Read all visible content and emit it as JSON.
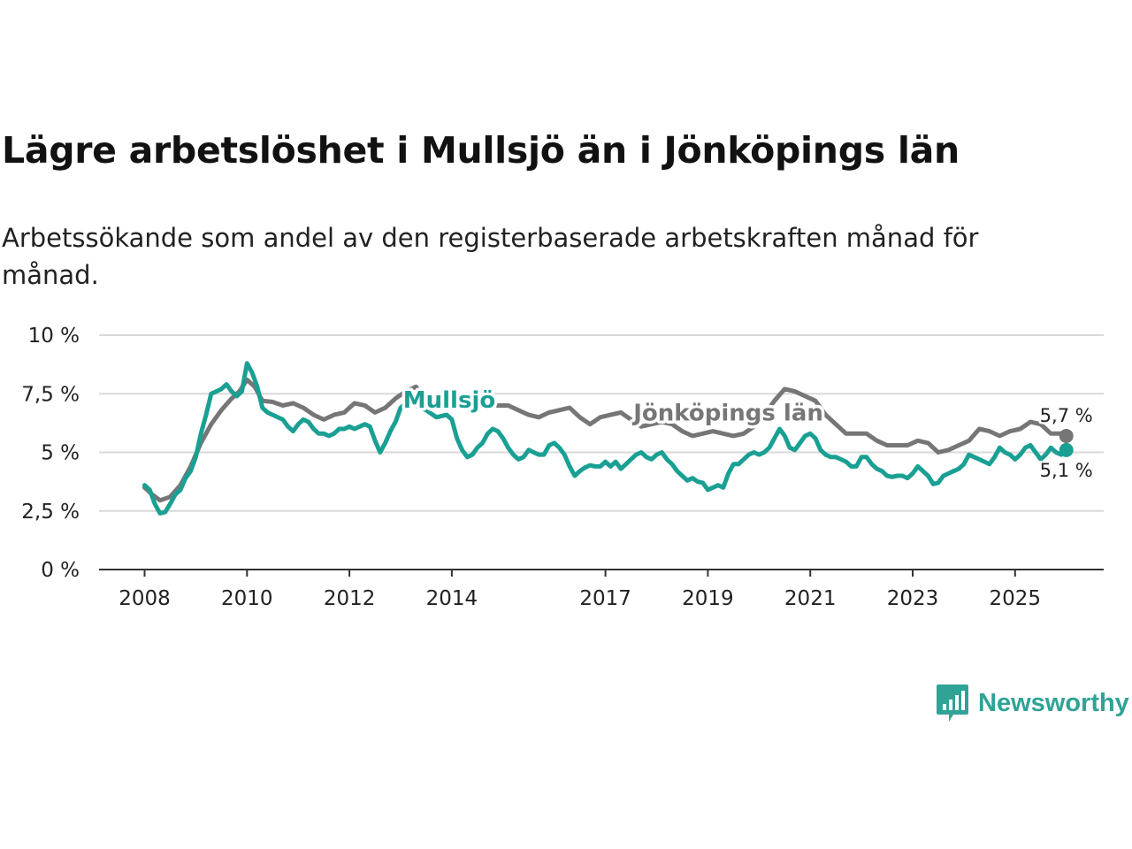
{
  "title": "Lägre arbetslöshet i Mullsjö än i Jönköpings län",
  "subtitle": "Arbetssökande som andel av den registerbaserade arbetskraften månad för månad.",
  "logo": {
    "text": "Newsworthy",
    "icon": "newsworthy-logo-icon",
    "color": "#2fa396"
  },
  "chart_data": {
    "type": "line",
    "y_unit": "%",
    "ylim": [
      0,
      10
    ],
    "xlim": [
      2007.75,
      2026.9
    ],
    "y_ticks": [
      {
        "value": 0,
        "label": "0 %"
      },
      {
        "value": 2.5,
        "label": "2,5 %"
      },
      {
        "value": 5,
        "label": "5 %"
      },
      {
        "value": 7.5,
        "label": "7,5 %"
      },
      {
        "value": 10,
        "label": "10 %"
      }
    ],
    "x_ticks": [
      {
        "value": 2008,
        "label": "2008"
      },
      {
        "value": 2010,
        "label": "2010"
      },
      {
        "value": 2012,
        "label": "2012"
      },
      {
        "value": 2014,
        "label": "2014"
      },
      {
        "value": 2017,
        "label": "2017"
      },
      {
        "value": 2019,
        "label": "2019"
      },
      {
        "value": 2021,
        "label": "2021"
      },
      {
        "value": 2023,
        "label": "2023"
      },
      {
        "value": 2025,
        "label": "2025"
      }
    ],
    "series": [
      {
        "name": "Jönköpings län",
        "color": "#767676",
        "end_label": "5,7 %",
        "points": [
          [
            2008.0,
            3.5
          ],
          [
            2008.15,
            3.2
          ],
          [
            2008.3,
            2.95
          ],
          [
            2008.5,
            3.1
          ],
          [
            2008.7,
            3.6
          ],
          [
            2008.9,
            4.4
          ],
          [
            2009.1,
            5.4
          ],
          [
            2009.3,
            6.2
          ],
          [
            2009.5,
            6.8
          ],
          [
            2009.7,
            7.3
          ],
          [
            2009.85,
            7.6
          ],
          [
            2010.0,
            8.1
          ],
          [
            2010.15,
            7.8
          ],
          [
            2010.3,
            7.2
          ],
          [
            2010.5,
            7.15
          ],
          [
            2010.7,
            7.0
          ],
          [
            2010.9,
            7.1
          ],
          [
            2011.1,
            6.9
          ],
          [
            2011.3,
            6.6
          ],
          [
            2011.5,
            6.4
          ],
          [
            2011.7,
            6.6
          ],
          [
            2011.9,
            6.7
          ],
          [
            2012.1,
            7.1
          ],
          [
            2012.3,
            7.0
          ],
          [
            2012.5,
            6.7
          ],
          [
            2012.7,
            6.9
          ],
          [
            2012.9,
            7.3
          ],
          [
            2013.1,
            7.6
          ],
          [
            2013.3,
            7.8
          ],
          [
            2013.5,
            7.2
          ],
          [
            2013.7,
            7.0
          ],
          [
            2013.9,
            7.3
          ],
          [
            2014.1,
            7.4
          ],
          [
            2014.3,
            7.3
          ],
          [
            2014.5,
            7.0
          ],
          [
            2014.7,
            7.1
          ],
          [
            2014.9,
            7.0
          ],
          [
            2015.1,
            7.0
          ],
          [
            2015.3,
            6.8
          ],
          [
            2015.5,
            6.6
          ],
          [
            2015.7,
            6.5
          ],
          [
            2015.9,
            6.7
          ],
          [
            2016.1,
            6.8
          ],
          [
            2016.3,
            6.9
          ],
          [
            2016.5,
            6.5
          ],
          [
            2016.7,
            6.2
          ],
          [
            2016.9,
            6.5
          ],
          [
            2017.1,
            6.6
          ],
          [
            2017.3,
            6.7
          ],
          [
            2017.5,
            6.4
          ],
          [
            2017.7,
            6.1
          ],
          [
            2017.9,
            6.2
          ],
          [
            2018.1,
            6.3
          ],
          [
            2018.3,
            6.2
          ],
          [
            2018.5,
            5.9
          ],
          [
            2018.7,
            5.7
          ],
          [
            2018.9,
            5.8
          ],
          [
            2019.1,
            5.9
          ],
          [
            2019.3,
            5.8
          ],
          [
            2019.5,
            5.7
          ],
          [
            2019.7,
            5.8
          ],
          [
            2019.9,
            6.1
          ],
          [
            2020.1,
            6.6
          ],
          [
            2020.3,
            7.2
          ],
          [
            2020.5,
            7.7
          ],
          [
            2020.7,
            7.6
          ],
          [
            2020.9,
            7.4
          ],
          [
            2021.1,
            7.2
          ],
          [
            2021.3,
            6.6
          ],
          [
            2021.5,
            6.2
          ],
          [
            2021.7,
            5.8
          ],
          [
            2021.9,
            5.8
          ],
          [
            2022.1,
            5.8
          ],
          [
            2022.3,
            5.5
          ],
          [
            2022.5,
            5.3
          ],
          [
            2022.7,
            5.3
          ],
          [
            2022.9,
            5.3
          ],
          [
            2023.1,
            5.5
          ],
          [
            2023.3,
            5.4
          ],
          [
            2023.5,
            5.0
          ],
          [
            2023.7,
            5.1
          ],
          [
            2023.9,
            5.3
          ],
          [
            2024.1,
            5.5
          ],
          [
            2024.3,
            6.0
          ],
          [
            2024.5,
            5.9
          ],
          [
            2024.7,
            5.7
          ],
          [
            2024.9,
            5.9
          ],
          [
            2025.1,
            6.0
          ],
          [
            2025.3,
            6.3
          ],
          [
            2025.5,
            6.2
          ],
          [
            2025.7,
            5.8
          ],
          [
            2025.9,
            5.8
          ],
          [
            2026.0,
            5.7
          ]
        ]
      },
      {
        "name": "Mullsjö",
        "color": "#1aa093",
        "end_label": "5,1 %",
        "points": [
          [
            2008.0,
            3.6
          ],
          [
            2008.1,
            3.4
          ],
          [
            2008.2,
            2.8
          ],
          [
            2008.3,
            2.4
          ],
          [
            2008.4,
            2.45
          ],
          [
            2008.5,
            2.8
          ],
          [
            2008.6,
            3.2
          ],
          [
            2008.7,
            3.4
          ],
          [
            2008.8,
            3.9
          ],
          [
            2008.9,
            4.2
          ],
          [
            2009.0,
            4.8
          ],
          [
            2009.1,
            5.8
          ],
          [
            2009.2,
            6.6
          ],
          [
            2009.3,
            7.5
          ],
          [
            2009.4,
            7.6
          ],
          [
            2009.5,
            7.7
          ],
          [
            2009.6,
            7.9
          ],
          [
            2009.7,
            7.6
          ],
          [
            2009.8,
            7.4
          ],
          [
            2009.9,
            7.6
          ],
          [
            2010.0,
            8.8
          ],
          [
            2010.1,
            8.4
          ],
          [
            2010.2,
            7.8
          ],
          [
            2010.3,
            6.9
          ],
          [
            2010.4,
            6.7
          ],
          [
            2010.5,
            6.6
          ],
          [
            2010.7,
            6.4
          ],
          [
            2010.8,
            6.1
          ],
          [
            2010.9,
            5.9
          ],
          [
            2011.0,
            6.2
          ],
          [
            2011.1,
            6.4
          ],
          [
            2011.2,
            6.3
          ],
          [
            2011.3,
            6.0
          ],
          [
            2011.4,
            5.8
          ],
          [
            2011.5,
            5.8
          ],
          [
            2011.6,
            5.7
          ],
          [
            2011.7,
            5.8
          ],
          [
            2011.8,
            6.0
          ],
          [
            2011.9,
            6.0
          ],
          [
            2012.0,
            6.1
          ],
          [
            2012.1,
            6.0
          ],
          [
            2012.2,
            6.1
          ],
          [
            2012.3,
            6.2
          ],
          [
            2012.4,
            6.1
          ],
          [
            2012.5,
            5.5
          ],
          [
            2012.6,
            5.0
          ],
          [
            2012.7,
            5.4
          ],
          [
            2012.8,
            5.9
          ],
          [
            2012.9,
            6.3
          ],
          [
            2013.0,
            6.9
          ],
          [
            2013.1,
            7.1
          ],
          [
            2013.2,
            7.2
          ],
          [
            2013.3,
            7.0
          ],
          [
            2013.5,
            6.8
          ],
          [
            2013.7,
            6.5
          ],
          [
            2013.9,
            6.6
          ],
          [
            2014.0,
            6.4
          ],
          [
            2014.1,
            5.6
          ],
          [
            2014.2,
            5.1
          ],
          [
            2014.3,
            4.8
          ],
          [
            2014.4,
            4.9
          ],
          [
            2014.5,
            5.2
          ],
          [
            2014.6,
            5.4
          ],
          [
            2014.7,
            5.8
          ],
          [
            2014.8,
            6.0
          ],
          [
            2014.9,
            5.9
          ],
          [
            2015.0,
            5.6
          ],
          [
            2015.1,
            5.2
          ],
          [
            2015.2,
            4.9
          ],
          [
            2015.3,
            4.7
          ],
          [
            2015.4,
            4.8
          ],
          [
            2015.5,
            5.1
          ],
          [
            2015.6,
            5.0
          ],
          [
            2015.7,
            4.9
          ],
          [
            2015.8,
            4.9
          ],
          [
            2015.9,
            5.3
          ],
          [
            2016.0,
            5.4
          ],
          [
            2016.1,
            5.2
          ],
          [
            2016.2,
            4.9
          ],
          [
            2016.3,
            4.4
          ],
          [
            2016.4,
            4.0
          ],
          [
            2016.5,
            4.2
          ],
          [
            2016.6,
            4.35
          ],
          [
            2016.7,
            4.45
          ],
          [
            2016.8,
            4.4
          ],
          [
            2016.9,
            4.4
          ],
          [
            2017.0,
            4.6
          ],
          [
            2017.1,
            4.4
          ],
          [
            2017.2,
            4.6
          ],
          [
            2017.3,
            4.3
          ],
          [
            2017.4,
            4.5
          ],
          [
            2017.5,
            4.7
          ],
          [
            2017.6,
            4.9
          ],
          [
            2017.7,
            5.0
          ],
          [
            2017.8,
            4.8
          ],
          [
            2017.9,
            4.7
          ],
          [
            2018.0,
            4.9
          ],
          [
            2018.1,
            5.0
          ],
          [
            2018.2,
            4.7
          ],
          [
            2018.3,
            4.5
          ],
          [
            2018.4,
            4.2
          ],
          [
            2018.5,
            4.0
          ],
          [
            2018.6,
            3.8
          ],
          [
            2018.7,
            3.9
          ],
          [
            2018.8,
            3.75
          ],
          [
            2018.9,
            3.7
          ],
          [
            2019.0,
            3.4
          ],
          [
            2019.1,
            3.5
          ],
          [
            2019.2,
            3.6
          ],
          [
            2019.3,
            3.5
          ],
          [
            2019.4,
            4.1
          ],
          [
            2019.5,
            4.5
          ],
          [
            2019.6,
            4.5
          ],
          [
            2019.7,
            4.7
          ],
          [
            2019.8,
            4.9
          ],
          [
            2019.9,
            5.0
          ],
          [
            2020.0,
            4.9
          ],
          [
            2020.1,
            5.0
          ],
          [
            2020.2,
            5.2
          ],
          [
            2020.3,
            5.6
          ],
          [
            2020.4,
            6.0
          ],
          [
            2020.5,
            5.7
          ],
          [
            2020.6,
            5.2
          ],
          [
            2020.7,
            5.1
          ],
          [
            2020.8,
            5.4
          ],
          [
            2020.9,
            5.7
          ],
          [
            2021.0,
            5.8
          ],
          [
            2021.1,
            5.6
          ],
          [
            2021.2,
            5.1
          ],
          [
            2021.3,
            4.9
          ],
          [
            2021.4,
            4.8
          ],
          [
            2021.5,
            4.8
          ],
          [
            2021.6,
            4.7
          ],
          [
            2021.7,
            4.6
          ],
          [
            2021.8,
            4.4
          ],
          [
            2021.9,
            4.4
          ],
          [
            2022.0,
            4.8
          ],
          [
            2022.1,
            4.8
          ],
          [
            2022.2,
            4.5
          ],
          [
            2022.3,
            4.3
          ],
          [
            2022.4,
            4.2
          ],
          [
            2022.5,
            4.0
          ],
          [
            2022.6,
            3.95
          ],
          [
            2022.7,
            4.0
          ],
          [
            2022.8,
            4.0
          ],
          [
            2022.9,
            3.9
          ],
          [
            2023.0,
            4.1
          ],
          [
            2023.1,
            4.4
          ],
          [
            2023.2,
            4.2
          ],
          [
            2023.3,
            4.0
          ],
          [
            2023.4,
            3.65
          ],
          [
            2023.5,
            3.7
          ],
          [
            2023.6,
            4.0
          ],
          [
            2023.7,
            4.1
          ],
          [
            2023.8,
            4.2
          ],
          [
            2023.9,
            4.3
          ],
          [
            2024.0,
            4.5
          ],
          [
            2024.1,
            4.9
          ],
          [
            2024.2,
            4.8
          ],
          [
            2024.3,
            4.7
          ],
          [
            2024.4,
            4.6
          ],
          [
            2024.5,
            4.5
          ],
          [
            2024.6,
            4.8
          ],
          [
            2024.7,
            5.2
          ],
          [
            2024.8,
            5.0
          ],
          [
            2024.9,
            4.9
          ],
          [
            2025.0,
            4.7
          ],
          [
            2025.1,
            4.9
          ],
          [
            2025.2,
            5.2
          ],
          [
            2025.3,
            5.3
          ],
          [
            2025.4,
            5.0
          ],
          [
            2025.5,
            4.7
          ],
          [
            2025.6,
            4.9
          ],
          [
            2025.7,
            5.2
          ],
          [
            2025.8,
            5.0
          ],
          [
            2025.9,
            4.9
          ],
          [
            2026.0,
            5.1
          ]
        ]
      }
    ],
    "annotations": [
      {
        "text": "Mullsjö",
        "series": "Mullsjö",
        "x": 2013.95,
        "y": 6.9,
        "color": "#1aa093"
      },
      {
        "text": "Jönköpings län",
        "series": "Jönköpings län",
        "x": 2019.4,
        "y": 6.35,
        "color": "#767676"
      }
    ]
  }
}
